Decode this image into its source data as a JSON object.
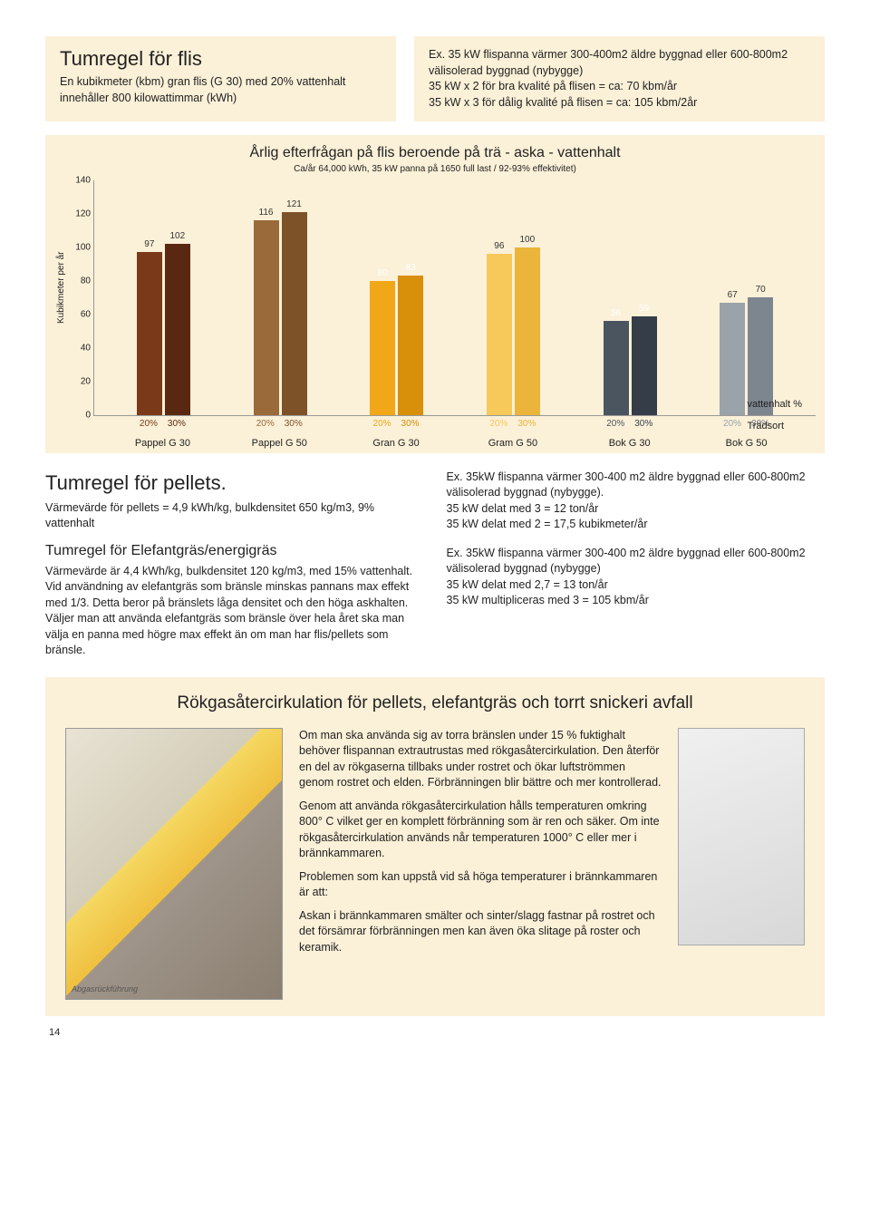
{
  "colors": {
    "panel_bg": "#fbf0d8",
    "text": "#222222"
  },
  "top_left": {
    "title": "Tumregel för flis",
    "body": "En kubikmeter (kbm) gran flis (G 30) med 20% vattenhalt innehåller 800 kilowattimmar (kWh)"
  },
  "top_right": {
    "line1": "Ex. 35 kW flispanna värmer 300-400m2 äldre byggnad eller 600-800m2 välisolerad byggnad (nybygge)",
    "line2": "35 kW x 2 för bra kvalité på flisen = ca: 70 kbm/år",
    "line3": "35 kW x 3 för dålig kvalité på flisen = ca: 105 kbm/2år"
  },
  "chart": {
    "type": "bar",
    "title": "Årlig efterfrågan på flis beroende på trä - aska - vattenhalt",
    "subtitle": "Ca/år 64,000 kWh, 35 kW panna på 1650 full last / 92-93% effektivitet)",
    "y_label": "Kubikmeter per år",
    "y_ticks": [
      0,
      20,
      40,
      60,
      80,
      100,
      120,
      140
    ],
    "ylim": [
      0,
      140
    ],
    "pct_label": "vattenhalt %",
    "sort_label": "Trädsort",
    "groups": [
      {
        "cat": "Pappel G 30",
        "bars": [
          {
            "pct": "20%",
            "val": 97,
            "color": "#7a3a1a",
            "valcolor": "dark"
          },
          {
            "pct": "30%",
            "val": 102,
            "color": "#5a2810",
            "valcolor": "dark"
          }
        ]
      },
      {
        "cat": "Pappel G 50",
        "bars": [
          {
            "pct": "20%",
            "val": 116,
            "color": "#9a6a3a",
            "valcolor": "dark"
          },
          {
            "pct": "30%",
            "val": 121,
            "color": "#7e5228",
            "valcolor": "dark"
          }
        ]
      },
      {
        "cat": "Gran G 30",
        "bars": [
          {
            "pct": "20%",
            "val": 80,
            "color": "#f0a818",
            "valcolor": "light"
          },
          {
            "pct": "30%",
            "val": 83,
            "color": "#d88f0a",
            "valcolor": "light"
          }
        ]
      },
      {
        "cat": "Gram G 50",
        "bars": [
          {
            "pct": "20%",
            "val": 96,
            "color": "#f6c95a",
            "valcolor": "dark"
          },
          {
            "pct": "30%",
            "val": 100,
            "color": "#eab53a",
            "valcolor": "dark"
          }
        ]
      },
      {
        "cat": "Bok G 30",
        "bars": [
          {
            "pct": "20%",
            "val": 56,
            "color": "#4a5560",
            "valcolor": "light"
          },
          {
            "pct": "30%",
            "val": 59,
            "color": "#353e48",
            "valcolor": "light"
          }
        ]
      },
      {
        "cat": "Bok G 50",
        "bars": [
          {
            "pct": "20%",
            "val": 67,
            "color": "#9aa2aa",
            "valcolor": "dark"
          },
          {
            "pct": "30%",
            "val": 70,
            "color": "#7d858e",
            "valcolor": "dark"
          }
        ]
      }
    ]
  },
  "mid_left": {
    "h2": "Tumregel för pellets.",
    "p1": "Värmevärde för pellets = 4,9 kWh/kg, bulkdensitet 650 kg/m3, 9% vattenhalt",
    "h3": "Tumregel för Elefantgräs/energigräs",
    "p2": "Värmevärde är 4,4 kWh/kg, bulkdensitet 120 kg/m3, med 15% vattenhalt. Vid användning av elefantgräs som bränsle minskas pannans max effekt med 1/3. Detta beror på bränslets låga densitet och den höga askhalten. Väljer man att använda elefantgräs som bränsle över hela året ska man välja en panna med högre max effekt än om man har flis/pellets som bränsle."
  },
  "mid_right": {
    "p1": "Ex. 35kW flispanna värmer 300-400 m2 äldre byggnad eller 600-800m2 välisolerad byggnad (nybygge).",
    "p2": "35 kW delat med 3 = 12 ton/år",
    "p3": "35 kW delat med 2 = 17,5 kubikmeter/år",
    "p4": "Ex. 35kW flispanna värmer 300-400 m2 äldre byggnad eller 600-800m2 välisolerad byggnad (nybygge)",
    "p5": "35 kW delat med 2,7 = 13 ton/år",
    "p6": "35 kW multipliceras med 3 = 105 kbm/år"
  },
  "section2": {
    "title": "Rökgasåtercirkulation för pellets, elefantgräs och torrt snickeri avfall",
    "caption": "Abgasrückführung",
    "p1": "Om man ska använda sig av torra bränslen under 15 % fuktighalt behöver flispannan extrautrustas med rökgasåtercirkulation. Den återför en del av rökgaserna tillbaks under rostret och ökar luftströmmen genom rostret och elden. Förbränningen blir bättre och mer kontrollerad.",
    "p2": "Genom att använda rökgasåtercirkulation hålls temperaturen omkring 800° C vilket ger en komplett förbränning som är ren och säker. Om inte rökgasåtercirkulation används når temperaturen 1000° C eller mer i brännkammaren.",
    "p3": "Problemen som kan uppstå vid så höga temperaturer i brännkammaren är att:",
    "p4": "Askan i brännkammaren smälter och sinter/slagg fastnar på rostret och det försämrar förbränningen men kan även öka slitage på roster och keramik."
  },
  "page_num": "14"
}
